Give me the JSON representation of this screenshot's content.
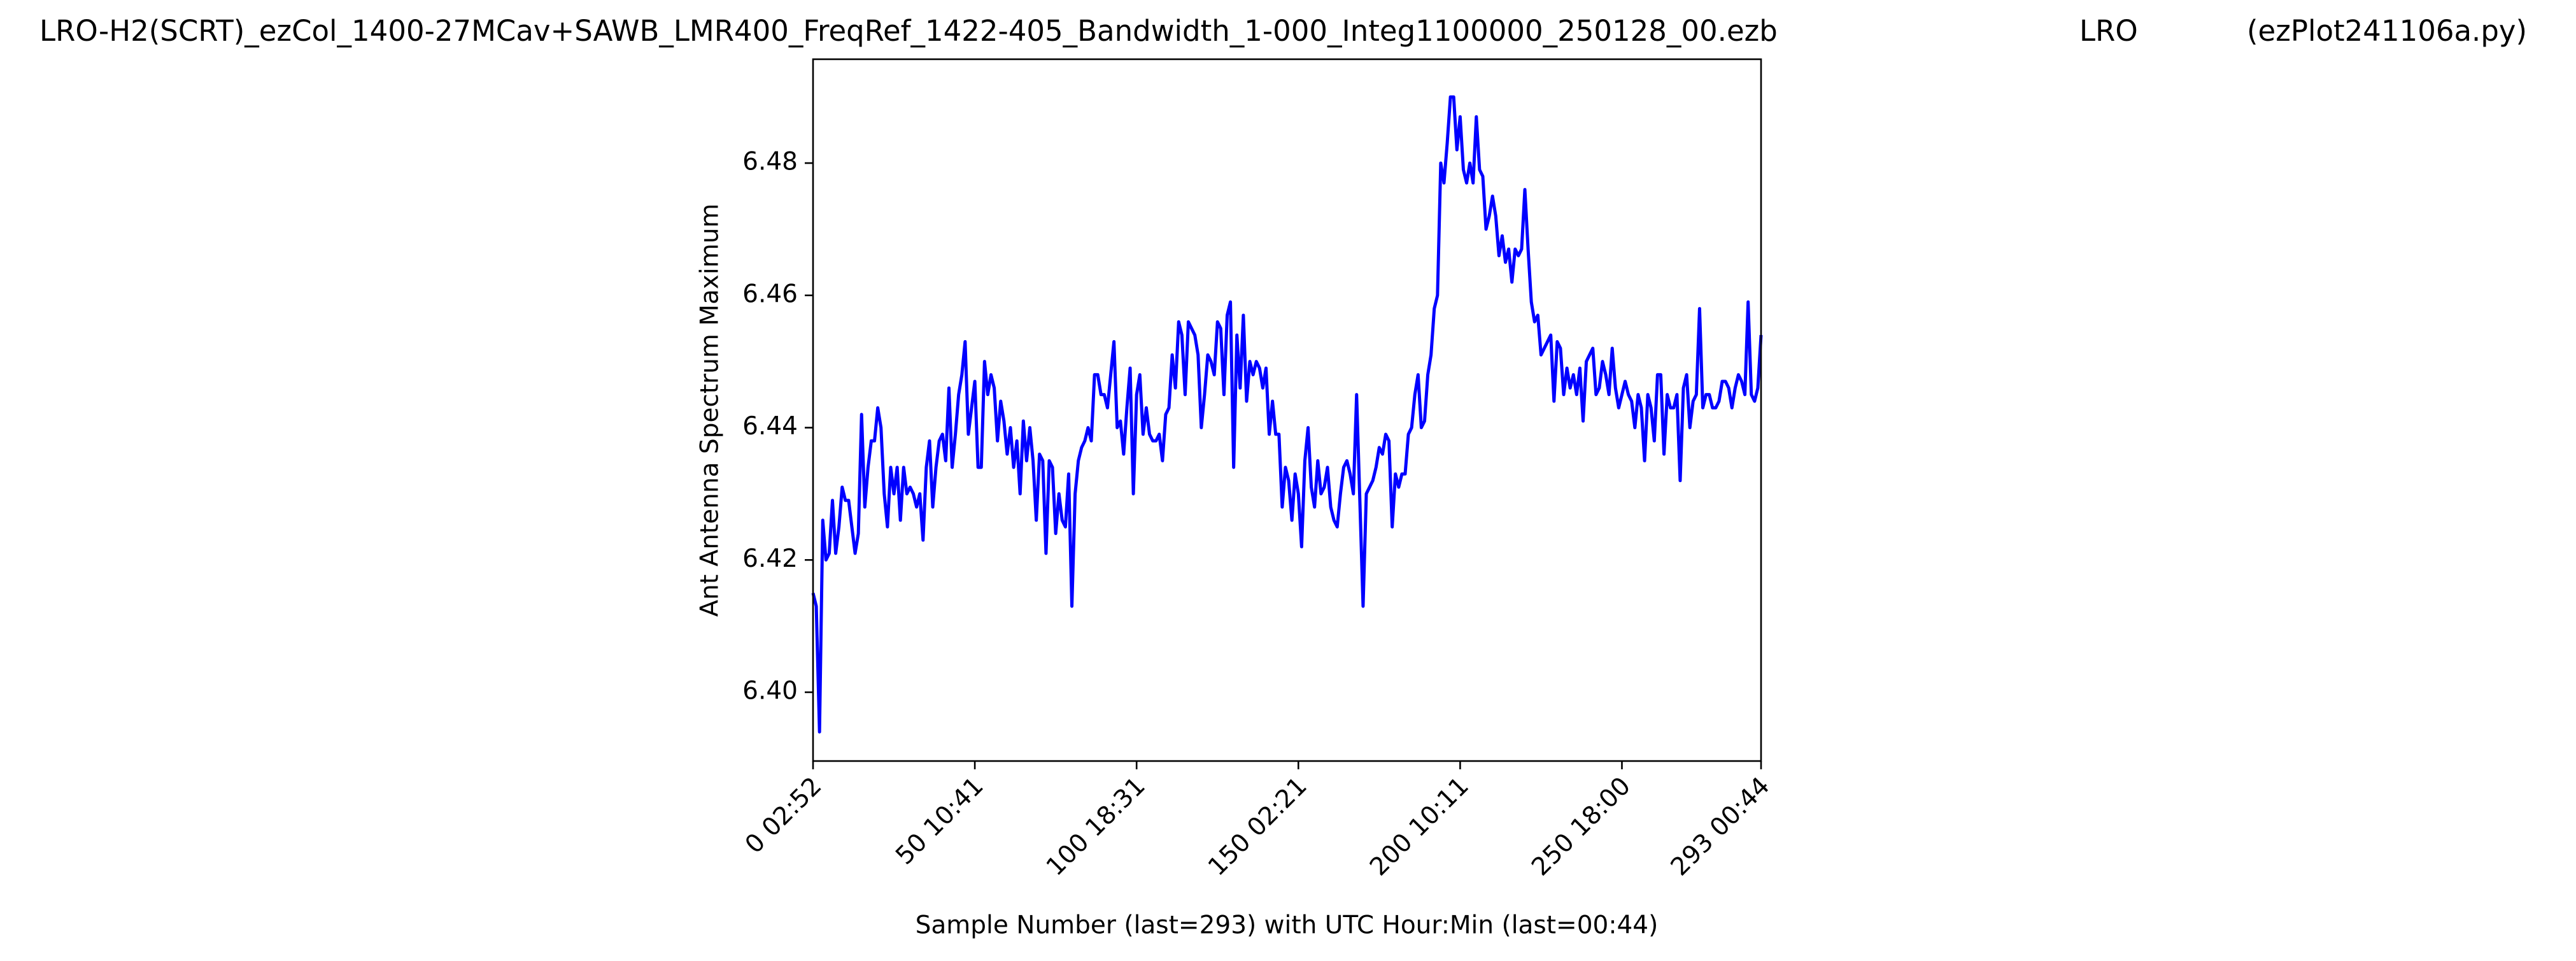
{
  "chart_data": {
    "type": "line",
    "title": "LRO-H2(SCRT)_ezCol_1400-27MCav+SAWB_LMR400_FreqRef_1422-405_Bandwidth_1-000_Integ1100000_250128_00.ezb",
    "annotations": [
      "LRO",
      "(ezPlot241106a.py)"
    ],
    "xlabel": "Sample Number (last=293) with UTC Hour:Min (last=00:44)",
    "ylabel": "Ant Antenna Spectrum Maximum",
    "xlim": [
      0,
      293
    ],
    "ylim": [
      6.3896,
      6.4957
    ],
    "xticks": [
      {
        "value": 0,
        "label": "0  02:52"
      },
      {
        "value": 50,
        "label": "50  10:41"
      },
      {
        "value": 100,
        "label": "100  18:31"
      },
      {
        "value": 150,
        "label": "150  02:21"
      },
      {
        "value": 200,
        "label": "200  10:11"
      },
      {
        "value": 250,
        "label": "250  18:00"
      },
      {
        "value": 293,
        "label": "293  00:44"
      }
    ],
    "yticks": [
      {
        "value": 6.4,
        "label": "6.40"
      },
      6.42,
      6.44,
      6.46,
      6.48
    ],
    "grid": false,
    "series": [
      {
        "color": "#0000ff",
        "x": [
          0,
          1,
          2,
          3,
          4,
          5,
          6,
          7,
          8,
          9,
          10,
          11,
          12,
          13,
          14,
          15,
          16,
          17,
          18,
          19,
          20,
          21,
          22,
          23,
          24,
          25,
          26,
          27,
          28,
          29,
          30,
          31,
          32,
          33,
          34,
          35,
          36,
          37,
          38,
          39,
          40,
          41,
          42,
          43,
          44,
          45,
          46,
          47,
          48,
          49,
          50,
          51,
          52,
          53,
          54,
          55,
          56,
          57,
          58,
          59,
          60,
          61,
          62,
          63,
          64,
          65,
          66,
          67,
          68,
          69,
          70,
          71,
          72,
          73,
          74,
          75,
          76,
          77,
          78,
          79,
          80,
          81,
          82,
          83,
          84,
          85,
          86,
          87,
          88,
          89,
          90,
          91,
          92,
          93,
          94,
          95,
          96,
          97,
          98,
          99,
          100,
          101,
          102,
          103,
          104,
          105,
          106,
          107,
          108,
          109,
          110,
          111,
          112,
          113,
          114,
          115,
          116,
          117,
          118,
          119,
          120,
          121,
          122,
          123,
          124,
          125,
          126,
          127,
          128,
          129,
          130,
          131,
          132,
          133,
          134,
          135,
          136,
          137,
          138,
          139,
          140,
          141,
          142,
          143,
          144,
          145,
          146,
          147,
          148,
          149,
          150,
          151,
          152,
          153,
          154,
          155,
          156,
          157,
          158,
          159,
          160,
          161,
          162,
          163,
          164,
          165,
          166,
          167,
          168,
          169,
          170,
          171,
          172,
          173,
          174,
          175,
          176,
          177,
          178,
          179,
          180,
          181,
          182,
          183,
          184,
          185,
          186,
          187,
          188,
          189,
          190,
          191,
          192,
          193,
          194,
          195,
          196,
          197,
          198,
          199,
          200,
          201,
          202,
          203,
          204,
          205,
          206,
          207,
          208,
          209,
          210,
          211,
          212,
          213,
          214,
          215,
          216,
          217,
          218,
          219,
          220,
          221,
          222,
          223,
          224,
          225,
          226,
          227,
          228,
          229,
          230,
          231,
          232,
          233,
          234,
          235,
          236,
          237,
          238,
          239,
          240,
          241,
          242,
          243,
          244,
          245,
          246,
          247,
          248,
          249,
          250,
          251,
          252,
          253,
          254,
          255,
          256,
          257,
          258,
          259,
          260,
          261,
          262,
          263,
          264,
          265,
          266,
          267,
          268,
          269,
          270,
          271,
          272,
          273,
          274,
          275,
          276,
          277,
          278,
          279,
          280,
          281,
          282,
          283,
          284,
          285,
          286,
          287,
          288,
          289,
          290,
          291,
          292,
          293
        ],
        "values": [
          6.415,
          6.413,
          6.394,
          6.426,
          6.42,
          6.421,
          6.429,
          6.421,
          6.425,
          6.431,
          6.429,
          6.429,
          6.425,
          6.421,
          6.424,
          6.442,
          6.428,
          6.434,
          6.438,
          6.438,
          6.443,
          6.44,
          6.43,
          6.425,
          6.434,
          6.43,
          6.434,
          6.426,
          6.434,
          6.43,
          6.431,
          6.43,
          6.428,
          6.43,
          6.423,
          6.434,
          6.438,
          6.428,
          6.434,
          6.438,
          6.439,
          6.435,
          6.446,
          6.434,
          6.439,
          6.445,
          6.448,
          6.453,
          6.439,
          6.443,
          6.447,
          6.434,
          6.434,
          6.45,
          6.445,
          6.448,
          6.446,
          6.438,
          6.444,
          6.441,
          6.436,
          6.44,
          6.434,
          6.438,
          6.43,
          6.441,
          6.435,
          6.44,
          6.435,
          6.426,
          6.436,
          6.435,
          6.421,
          6.435,
          6.434,
          6.424,
          6.43,
          6.426,
          6.425,
          6.433,
          6.413,
          6.43,
          6.435,
          6.437,
          6.438,
          6.44,
          6.438,
          6.448,
          6.448,
          6.445,
          6.445,
          6.443,
          6.448,
          6.453,
          6.44,
          6.441,
          6.436,
          6.443,
          6.449,
          6.43,
          6.445,
          6.448,
          6.439,
          6.443,
          6.439,
          6.438,
          6.438,
          6.439,
          6.435,
          6.442,
          6.443,
          6.451,
          6.446,
          6.456,
          6.454,
          6.445,
          6.456,
          6.455,
          6.454,
          6.451,
          6.44,
          6.445,
          6.451,
          6.45,
          6.448,
          6.456,
          6.455,
          6.445,
          6.457,
          6.459,
          6.434,
          6.454,
          6.446,
          6.457,
          6.444,
          6.45,
          6.448,
          6.45,
          6.449,
          6.446,
          6.449,
          6.439,
          6.444,
          6.439,
          6.439,
          6.428,
          6.434,
          6.432,
          6.426,
          6.433,
          6.43,
          6.422,
          6.435,
          6.44,
          6.431,
          6.428,
          6.435,
          6.43,
          6.431,
          6.434,
          6.428,
          6.426,
          6.425,
          6.43,
          6.434,
          6.435,
          6.433,
          6.43,
          6.445,
          6.429,
          6.413,
          6.43,
          6.431,
          6.432,
          6.434,
          6.437,
          6.436,
          6.439,
          6.438,
          6.425,
          6.433,
          6.431,
          6.433,
          6.433,
          6.439,
          6.44,
          6.445,
          6.448,
          6.44,
          6.441,
          6.448,
          6.451,
          6.458,
          6.46,
          6.48,
          6.477,
          6.483,
          6.49,
          6.49,
          6.482,
          6.487,
          6.479,
          6.477,
          6.48,
          6.477,
          6.487,
          6.479,
          6.478,
          6.47,
          6.472,
          6.475,
          6.472,
          6.466,
          6.469,
          6.465,
          6.467,
          6.462,
          6.467,
          6.466,
          6.467,
          6.476,
          6.467,
          6.459,
          6.456,
          6.457,
          6.451,
          6.452,
          6.453,
          6.454,
          6.444,
          6.453,
          6.452,
          6.445,
          6.449,
          6.446,
          6.448,
          6.445,
          6.449,
          6.441,
          6.45,
          6.451,
          6.452,
          6.445,
          6.446,
          6.45,
          6.448,
          6.445,
          6.452,
          6.446,
          6.443,
          6.445,
          6.447,
          6.445,
          6.444,
          6.44,
          6.445,
          6.443,
          6.435,
          6.445,
          6.443,
          6.438,
          6.448,
          6.448,
          6.436,
          6.445,
          6.443,
          6.443,
          6.445,
          6.432,
          6.446,
          6.448,
          6.44,
          6.444,
          6.445,
          6.458,
          6.443,
          6.445,
          6.445,
          6.443,
          6.443,
          6.444,
          6.447,
          6.447,
          6.446,
          6.443,
          6.446,
          6.448,
          6.447,
          6.445,
          6.459,
          6.445,
          6.444,
          6.446,
          6.454
        ]
      }
    ]
  }
}
